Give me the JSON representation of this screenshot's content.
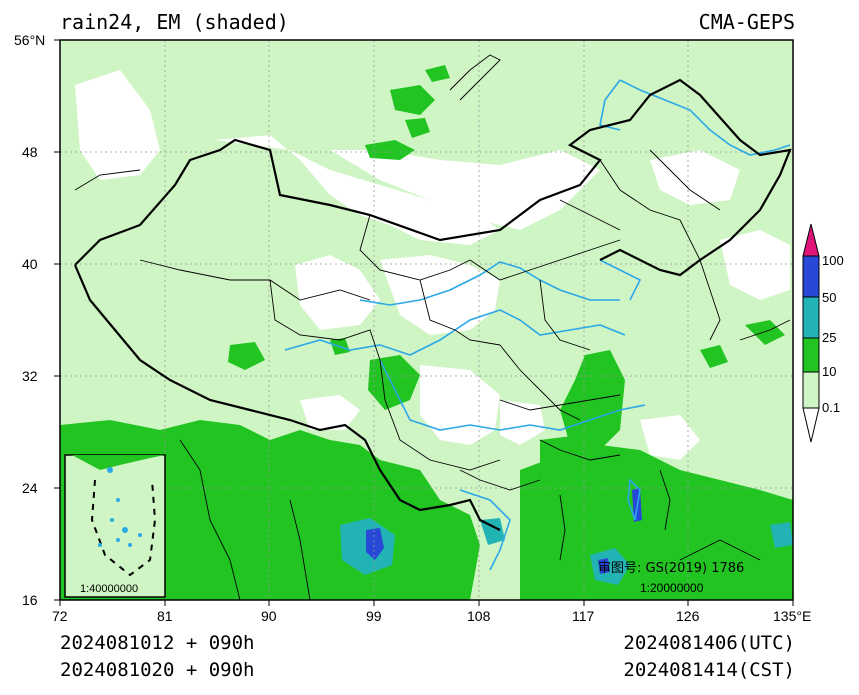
{
  "header": {
    "title": "rain24, EM (shaded)",
    "model": "CMA-GEPS"
  },
  "footer": {
    "init_utc": "2024081012 + 090h",
    "init_cst": "2024081020 + 090h",
    "valid_utc": "2024081406(UTC)",
    "valid_cst": "2024081414(CST)"
  },
  "axes": {
    "lat_ticks": [
      "56°N",
      "48",
      "40",
      "32",
      "24",
      "16"
    ],
    "lon_ticks": [
      "72",
      "81",
      "90",
      "99",
      "108",
      "117",
      "126",
      "135°E"
    ],
    "lat_range": [
      16,
      56
    ],
    "lon_range": [
      72,
      135
    ]
  },
  "colorbar": {
    "levels": [
      "0.1",
      "10",
      "25",
      "50",
      "100"
    ],
    "colors": [
      "#ffffff",
      "#cff5c4",
      "#22c422",
      "#22b4b4",
      "#2848d8",
      "#e0157a"
    ]
  },
  "map": {
    "approval_no": "审图号: GS(2019) 1786",
    "main_scale": "1:20000000",
    "inset_scale": "1:40000000",
    "colors": {
      "light_green": "#cff5c4",
      "green": "#22c422",
      "teal": "#22b4b4",
      "blue": "#2848d8",
      "river": "#2aa8e8",
      "border": "#000000"
    }
  }
}
